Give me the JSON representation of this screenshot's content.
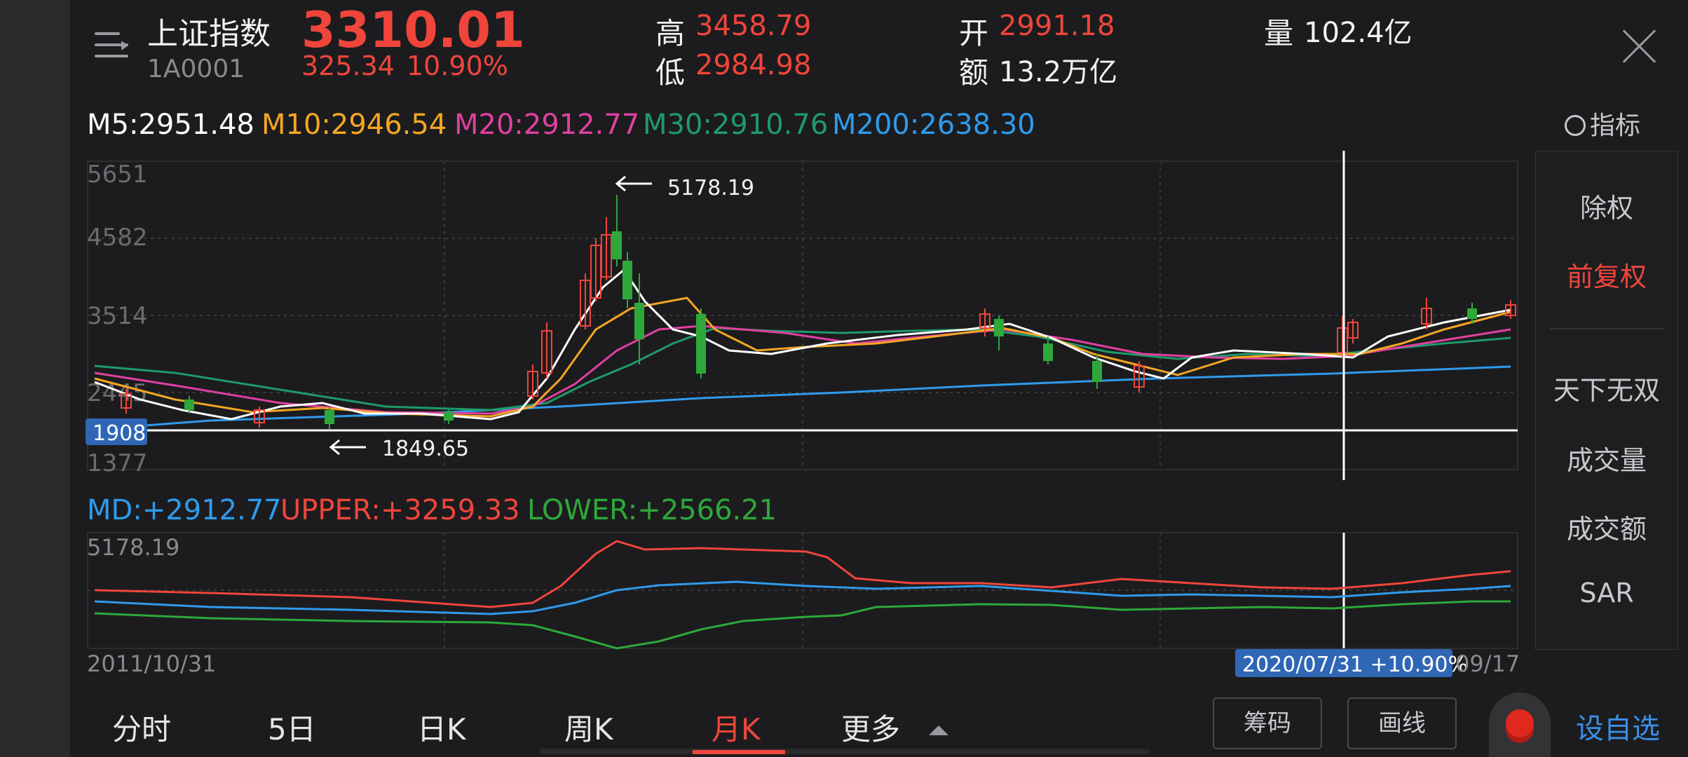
{
  "header": {
    "name": "上证指数",
    "code": "1A0001",
    "price": "3310.01",
    "change": "325.34",
    "change_pct": "10.90%",
    "high_label": "高",
    "high": "3458.79",
    "low_label": "低",
    "low": "2984.98",
    "open_label": "开",
    "open": "2991.18",
    "amount_label": "额",
    "amount": "13.2万亿",
    "volume_label": "量",
    "volume": "102.4亿"
  },
  "ma": {
    "m5": "M5:2951.48",
    "m10": "M10:2946.54",
    "m20": "M20:2912.77",
    "m30": "M30:2910.76",
    "m200": "M200:2638.30",
    "indicator_label": "指标"
  },
  "boll": {
    "md": "MD:+2912.77",
    "upper": "UPPER:+3259.33",
    "lower": "LOWER:+2566.21",
    "top_label": "5178.19"
  },
  "main_chart": {
    "y_ticks": [
      "5651",
      "4582",
      "3514",
      "2445",
      "1377"
    ],
    "cursor_value": "1908",
    "max_label": "5178.19",
    "min_label": "1849.65"
  },
  "dates": {
    "start": "2011/10/31",
    "cursor": "2020/07/31  +10.90%",
    "end_partial": "09/17"
  },
  "right_panel": [
    "除权",
    "前复权",
    "天下无双",
    "成交量",
    "成交额",
    "SAR"
  ],
  "tabs": [
    "分时",
    "5日",
    "日K",
    "周K",
    "月K",
    "更多"
  ],
  "buttons": {
    "chips": "筹码",
    "draw": "画线",
    "add_watch": "设自选"
  },
  "colors": {
    "up": "#f0453b",
    "down": "#2ea83a",
    "m5": "#ffffff",
    "m10": "#f5a623",
    "m20": "#e040a0",
    "m30": "#1f9a6a",
    "m200": "#2f9bec"
  },
  "chart_data": {
    "type": "candlestick",
    "series": [
      {
        "name": "M5",
        "last": 2951.48
      },
      {
        "name": "M10",
        "last": 2946.54
      },
      {
        "name": "M20",
        "last": 2912.77
      },
      {
        "name": "M30",
        "last": 2910.76
      },
      {
        "name": "M200",
        "last": 2638.3
      }
    ],
    "ylim": [
      1377,
      5651
    ],
    "x_start": "2011/10/31",
    "x_end": "09/17",
    "max": 5178.19,
    "min": 1849.65,
    "bollinger": {
      "MD": 2912.77,
      "UPPER": 3259.33,
      "LOWER": 2566.21
    }
  }
}
